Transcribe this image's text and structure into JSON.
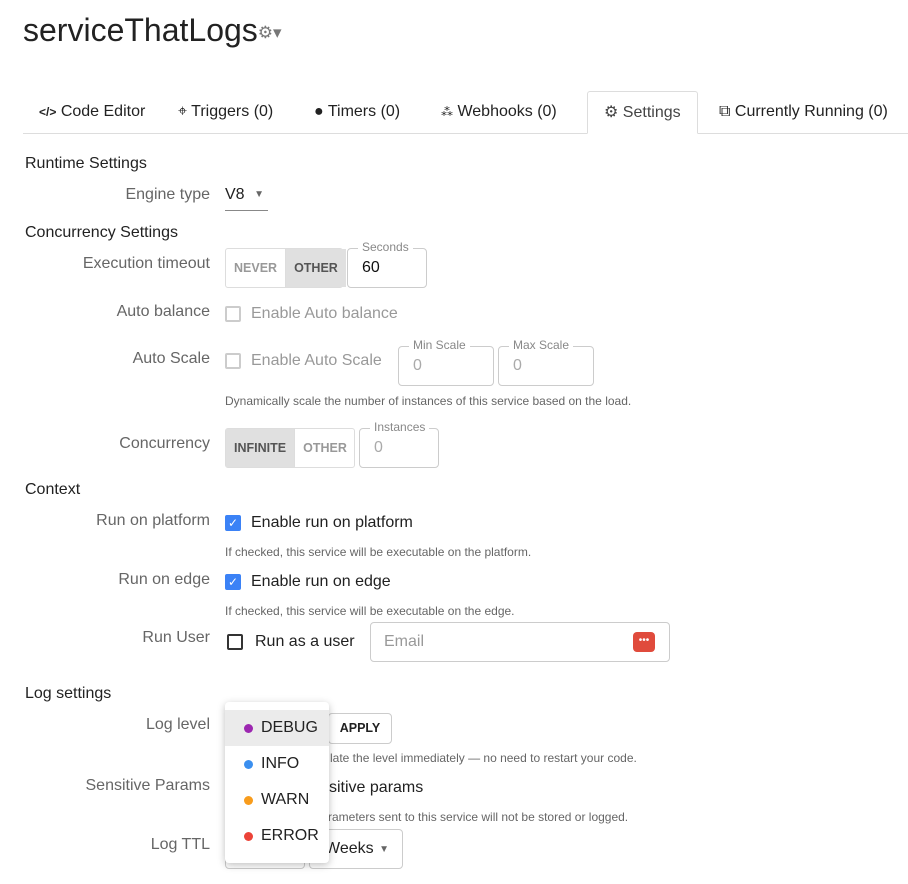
{
  "title": "serviceThatLogs",
  "tabs": [
    {
      "label": "Code Editor",
      "icon": "code-icon"
    },
    {
      "label": "Triggers (0)",
      "icon": "crosshair-icon"
    },
    {
      "label": "Timers (0)",
      "icon": "clock-icon"
    },
    {
      "label": "Webhooks (0)",
      "icon": "webhook-icon"
    },
    {
      "label": "Settings",
      "icon": "gear-icon",
      "active": true
    },
    {
      "label": "Currently Running (0)",
      "icon": "stack-icon"
    }
  ],
  "runtime": {
    "heading": "Runtime Settings",
    "engine_label": "Engine type",
    "engine_value": "V8"
  },
  "concurrency": {
    "heading": "Concurrency Settings",
    "timeout_label": "Execution timeout",
    "timeout_options": [
      "NEVER",
      "OTHER"
    ],
    "timeout_selected": "OTHER",
    "seconds_label": "Seconds",
    "seconds_value": "60",
    "autobalance_label": "Auto balance",
    "autobalance_text": "Enable Auto balance",
    "autoscale_label": "Auto Scale",
    "autoscale_text": "Enable Auto Scale",
    "min_label": "Min Scale",
    "min_value": "0",
    "max_label": "Max Scale",
    "max_value": "0",
    "autoscale_help": "Dynamically scale the number of instances of this service based on the load.",
    "concurrency_label": "Concurrency",
    "concurrency_options": [
      "INFINITE",
      "OTHER"
    ],
    "concurrency_selected": "INFINITE",
    "instances_label": "Instances",
    "instances_value": "0"
  },
  "context": {
    "heading": "Context",
    "platform_label": "Run on platform",
    "platform_text": "Enable run on platform",
    "platform_help": "If checked, this service will be executable on the platform.",
    "edge_label": "Run on edge",
    "edge_text": "Enable run on edge",
    "edge_help": "If checked, this service will be executable on the edge.",
    "user_label": "Run User",
    "user_text": "Run as a user",
    "email_placeholder": "Email"
  },
  "log": {
    "heading": "Log settings",
    "level_label": "Log level",
    "apply": "APPLY",
    "level_help_fragment": "late the level immediately — no need to restart your code.",
    "sensitive_label": "Sensitive Params",
    "sensitive_fragment": "sitive params",
    "sensitive_help_fragment": "rameters sent to this service will not be stored or logged.",
    "ttl_label": "Log TTL",
    "ttl_unit": "Weeks",
    "menu": [
      {
        "label": "DEBUG",
        "color": "#9c27b0",
        "selected": true
      },
      {
        "label": "INFO",
        "color": "#3b8fef"
      },
      {
        "label": "WARN",
        "color": "#f89c1c"
      },
      {
        "label": "ERROR",
        "color": "#ec4338"
      }
    ]
  }
}
